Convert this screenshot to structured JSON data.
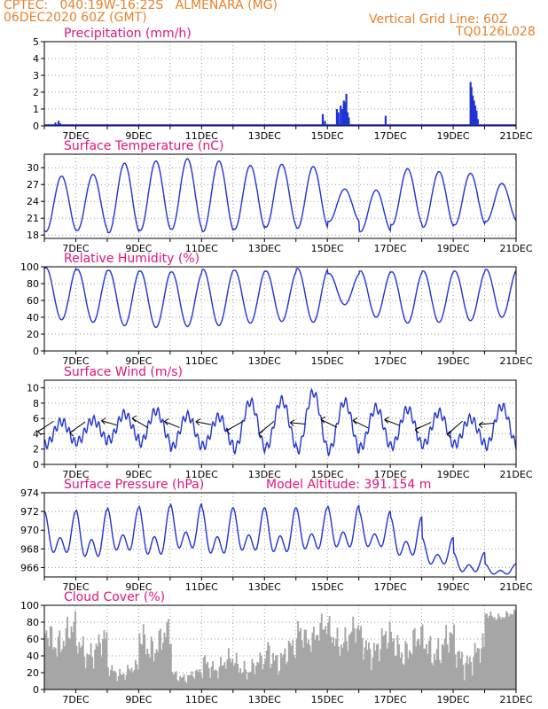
{
  "header": {
    "source_line": "CPTEC:   040:19W-16:22S   ALMENARA (MG)",
    "date_line": "06DEC2020 60Z (GMT)",
    "grid_line": "Vertical Grid Line: 60Z",
    "code": "TQ0126L028"
  },
  "colors": {
    "header": "#e8812c",
    "title": "#e0147a",
    "line": "#1f33d6",
    "bar": "#a6a6a6",
    "grid": "#9a9a9a"
  },
  "x_tick_labels": [
    "7DEC",
    "9DEC",
    "11DEC",
    "13DEC",
    "15DEC",
    "17DEC",
    "19DEC",
    "21DEC"
  ],
  "chart_data": [
    {
      "id": "precip",
      "type": "bar",
      "title": "Precipitation (mm/h)",
      "ylim": [
        0,
        5
      ],
      "yticks": [
        0,
        1,
        2,
        3,
        4,
        5
      ],
      "color": "#1f33d6",
      "x_range_days": [
        6.0,
        21.0
      ],
      "points": [
        [
          6.35,
          0.2
        ],
        [
          6.45,
          0.3
        ],
        [
          6.5,
          0.15
        ],
        [
          14.85,
          0.7
        ],
        [
          14.92,
          0.3
        ],
        [
          15.3,
          1.0
        ],
        [
          15.35,
          0.8
        ],
        [
          15.42,
          1.2
        ],
        [
          15.48,
          1.0
        ],
        [
          15.52,
          1.5
        ],
        [
          15.56,
          1.4
        ],
        [
          15.6,
          1.9
        ],
        [
          15.64,
          0.8
        ],
        [
          15.68,
          0.5
        ],
        [
          16.85,
          0.6
        ],
        [
          19.55,
          2.6
        ],
        [
          19.58,
          2.3
        ],
        [
          19.62,
          1.8
        ],
        [
          19.66,
          1.5
        ],
        [
          19.7,
          1.2
        ],
        [
          19.74,
          0.9
        ],
        [
          19.78,
          0.4
        ]
      ]
    },
    {
      "id": "temp",
      "type": "line",
      "title": "Surface Temperature (nC)",
      "ylim": [
        17.4,
        32.4
      ],
      "yticks": [
        18,
        21,
        24,
        27,
        30
      ],
      "color": "#1f33d6",
      "daily_max": [
        28.5,
        28.8,
        30.8,
        31.2,
        31.6,
        31.2,
        30.4,
        30.6,
        30.2,
        26.2,
        26.0,
        29.8,
        29.3,
        29.0,
        27.2,
        29.2
      ],
      "daily_min": [
        18.6,
        18.8,
        18.4,
        18.8,
        19.0,
        18.6,
        19.0,
        19.4,
        19.2,
        20.4,
        18.6,
        19.8,
        19.4,
        19.8,
        20.4,
        21.4
      ]
    },
    {
      "id": "rh",
      "type": "line",
      "title": "Relative Humidity (%)",
      "ylim": [
        0,
        100
      ],
      "yticks": [
        0,
        20,
        40,
        60,
        80,
        100
      ],
      "color": "#1f33d6",
      "daily_max": [
        99,
        97,
        96,
        95,
        94,
        97,
        96,
        95,
        98,
        92,
        95,
        94,
        95,
        95,
        97,
        98
      ],
      "daily_min": [
        37,
        34,
        30,
        28,
        29,
        30,
        33,
        35,
        34,
        55,
        40,
        33,
        34,
        36,
        40,
        52
      ]
    },
    {
      "id": "wind",
      "type": "line",
      "title": "Surface Wind (m/s)",
      "ylim": [
        0,
        11
      ],
      "yticks": [
        0,
        2,
        4,
        6,
        8,
        10
      ],
      "color": "#1f33d6",
      "daily_max": [
        5.6,
        5.8,
        6.6,
        7.0,
        6.4,
        6.2,
        8.2,
        8.4,
        9.4,
        8.2,
        7.4,
        7.2,
        6.8,
        6.0,
        7.6,
        7.0
      ],
      "daily_min": [
        2.6,
        3.0,
        3.2,
        2.8,
        2.2,
        2.4,
        2.0,
        2.2,
        1.8,
        1.8,
        2.2,
        2.4,
        2.6,
        2.6,
        2.4,
        3.0
      ]
    },
    {
      "id": "pressure",
      "type": "line",
      "title": "Surface Pressure (hPa)",
      "annotation": "Model Altitude: 391.154 m",
      "ylim": [
        965.0,
        974.0
      ],
      "yticks": [
        966,
        968,
        970,
        972,
        974
      ],
      "color": "#1f33d6",
      "daily_max": [
        972.0,
        972.2,
        972.4,
        972.6,
        972.8,
        972.4,
        972.4,
        972.4,
        972.4,
        972.6,
        972.0,
        971.4,
        969.2,
        967.6,
        966.4,
        967.0
      ],
      "daily_min": [
        966.4,
        965.8,
        966.6,
        966.0,
        966.8,
        966.2,
        966.6,
        966.4,
        966.8,
        967.0,
        967.2,
        966.2,
        965.6,
        965.0,
        965.0,
        965.0
      ]
    },
    {
      "id": "cloud",
      "type": "bar",
      "title": "Cloud Cover (%)",
      "ylim": [
        0,
        100
      ],
      "yticks": [
        0,
        20,
        40,
        60,
        80,
        100
      ],
      "color": "#a6a6a6",
      "daily_high": [
        96,
        80,
        36,
        90,
        28,
        50,
        48,
        70,
        94,
        92,
        86,
        84,
        86,
        70,
        96,
        94
      ],
      "daily_low": [
        30,
        20,
        8,
        24,
        6,
        10,
        8,
        14,
        40,
        34,
        22,
        20,
        18,
        10,
        80,
        86
      ]
    }
  ]
}
